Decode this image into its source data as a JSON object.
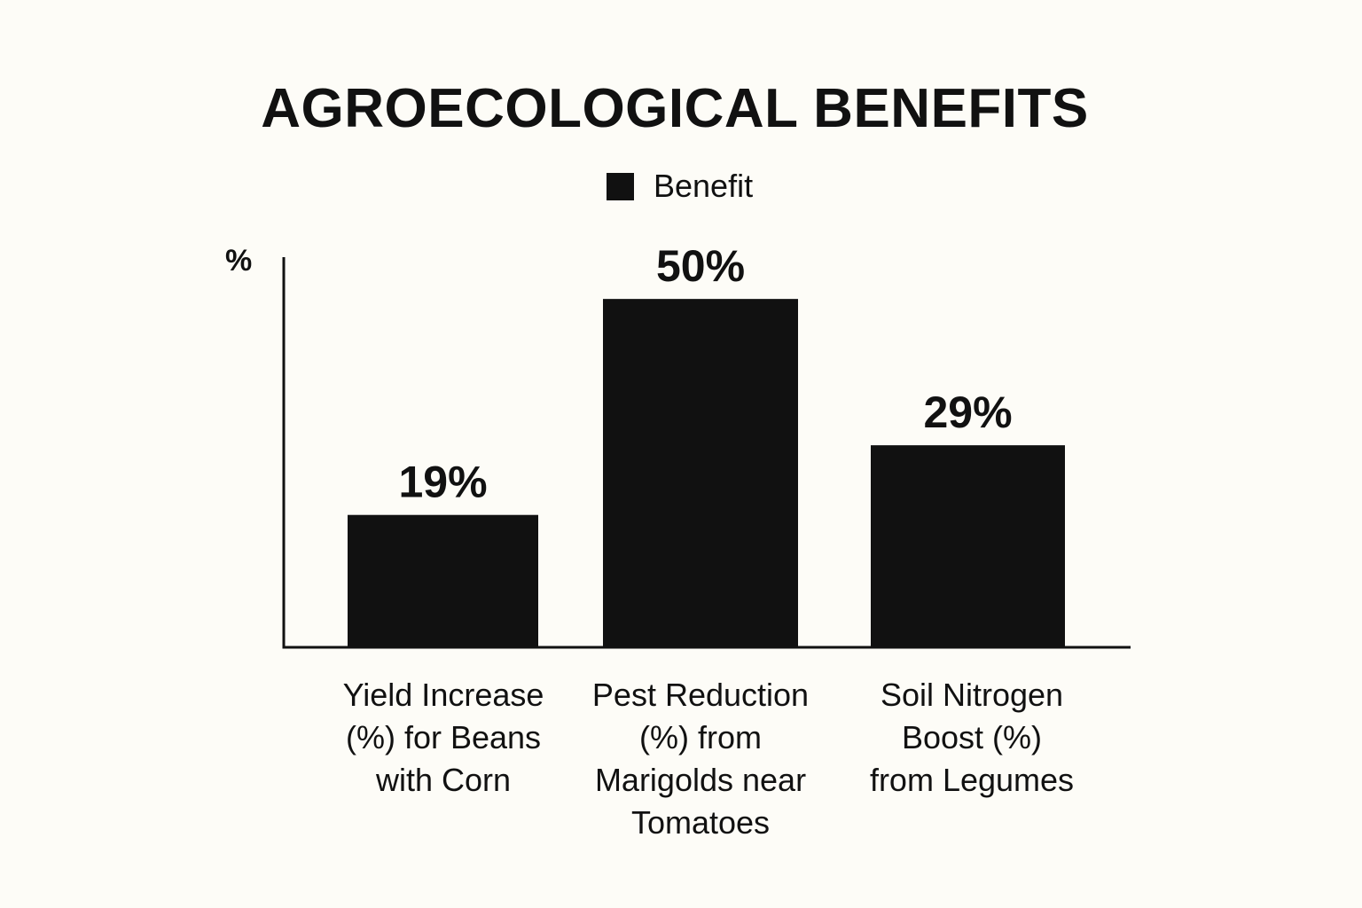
{
  "chart_data": {
    "type": "bar",
    "title": "AGROECOLOGICAL BENEFITS",
    "ylabel": "%",
    "categories": [
      "Yield Increase (%) for Beans with Corn",
      "Pest Reduction (%) from Marigolds near Tomatoes",
      "Soil Nitrogen Boost (%) from Legumes"
    ],
    "category_lines": [
      [
        "Yield Increase",
        "(%) for Beans",
        "with Corn"
      ],
      [
        "Pest Reduction",
        "(%) from",
        "Marigolds near",
        "Tomatoes"
      ],
      [
        "Soil Nitrogen",
        "Boost (%)",
        "from Legumes"
      ]
    ],
    "series": [
      {
        "name": "Benefit",
        "values": [
          19,
          50,
          29
        ],
        "labels": [
          "19%",
          "50%",
          "29%"
        ]
      }
    ],
    "ylim": [
      0,
      56
    ],
    "grid": false,
    "legend_position": "top-center",
    "colors": {
      "background": "#fdfcf7",
      "bar": "#111111",
      "text": "#111111"
    }
  }
}
